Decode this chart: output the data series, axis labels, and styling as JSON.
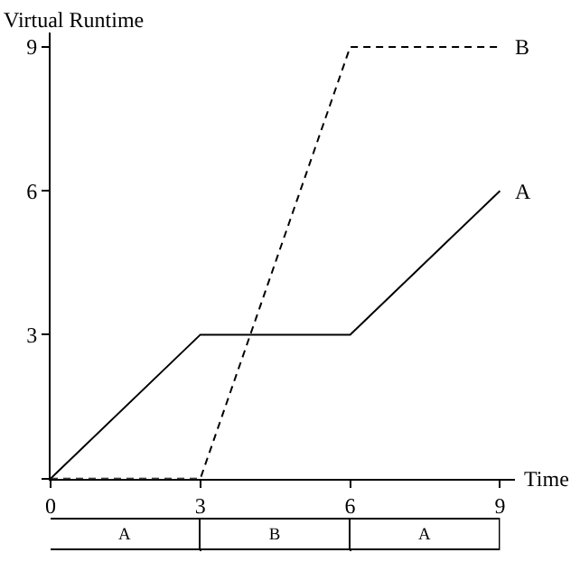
{
  "chart_data": [
    {
      "type": "line",
      "xlabel": "Time",
      "ylabel": "Virtual Runtime",
      "x": [
        0,
        3,
        6,
        9
      ],
      "xlim": [
        0,
        9.3
      ],
      "ylim": [
        0,
        9.3
      ],
      "xticks": [
        0,
        3,
        6,
        9
      ],
      "yticks": [
        {
          "value": 0,
          "label": null
        },
        3,
        6,
        9
      ],
      "marker": "none",
      "series": [
        {
          "name": "A",
          "color": "#000000",
          "line_style": "solid",
          "values": [
            0,
            3,
            3,
            6
          ]
        },
        {
          "name": "B",
          "color": "#000000",
          "line_style": "dashed",
          "values": [
            0,
            0,
            9,
            9
          ]
        }
      ]
    },
    {
      "type": "bar",
      "orientation": "horizontal",
      "stacked": true,
      "categories": [
        null
      ],
      "xlim": [
        0,
        9
      ],
      "xticks": [
        0,
        3,
        6,
        9
      ],
      "tick_labels": false,
      "series": [
        {
          "name": "A",
          "color": "#ffffff",
          "values": [
            3
          ]
        },
        {
          "name": "B",
          "color": "#ffffff",
          "values": [
            3
          ]
        },
        {
          "name": "A",
          "color": "#ffffff",
          "values": [
            3
          ]
        }
      ]
    }
  ]
}
